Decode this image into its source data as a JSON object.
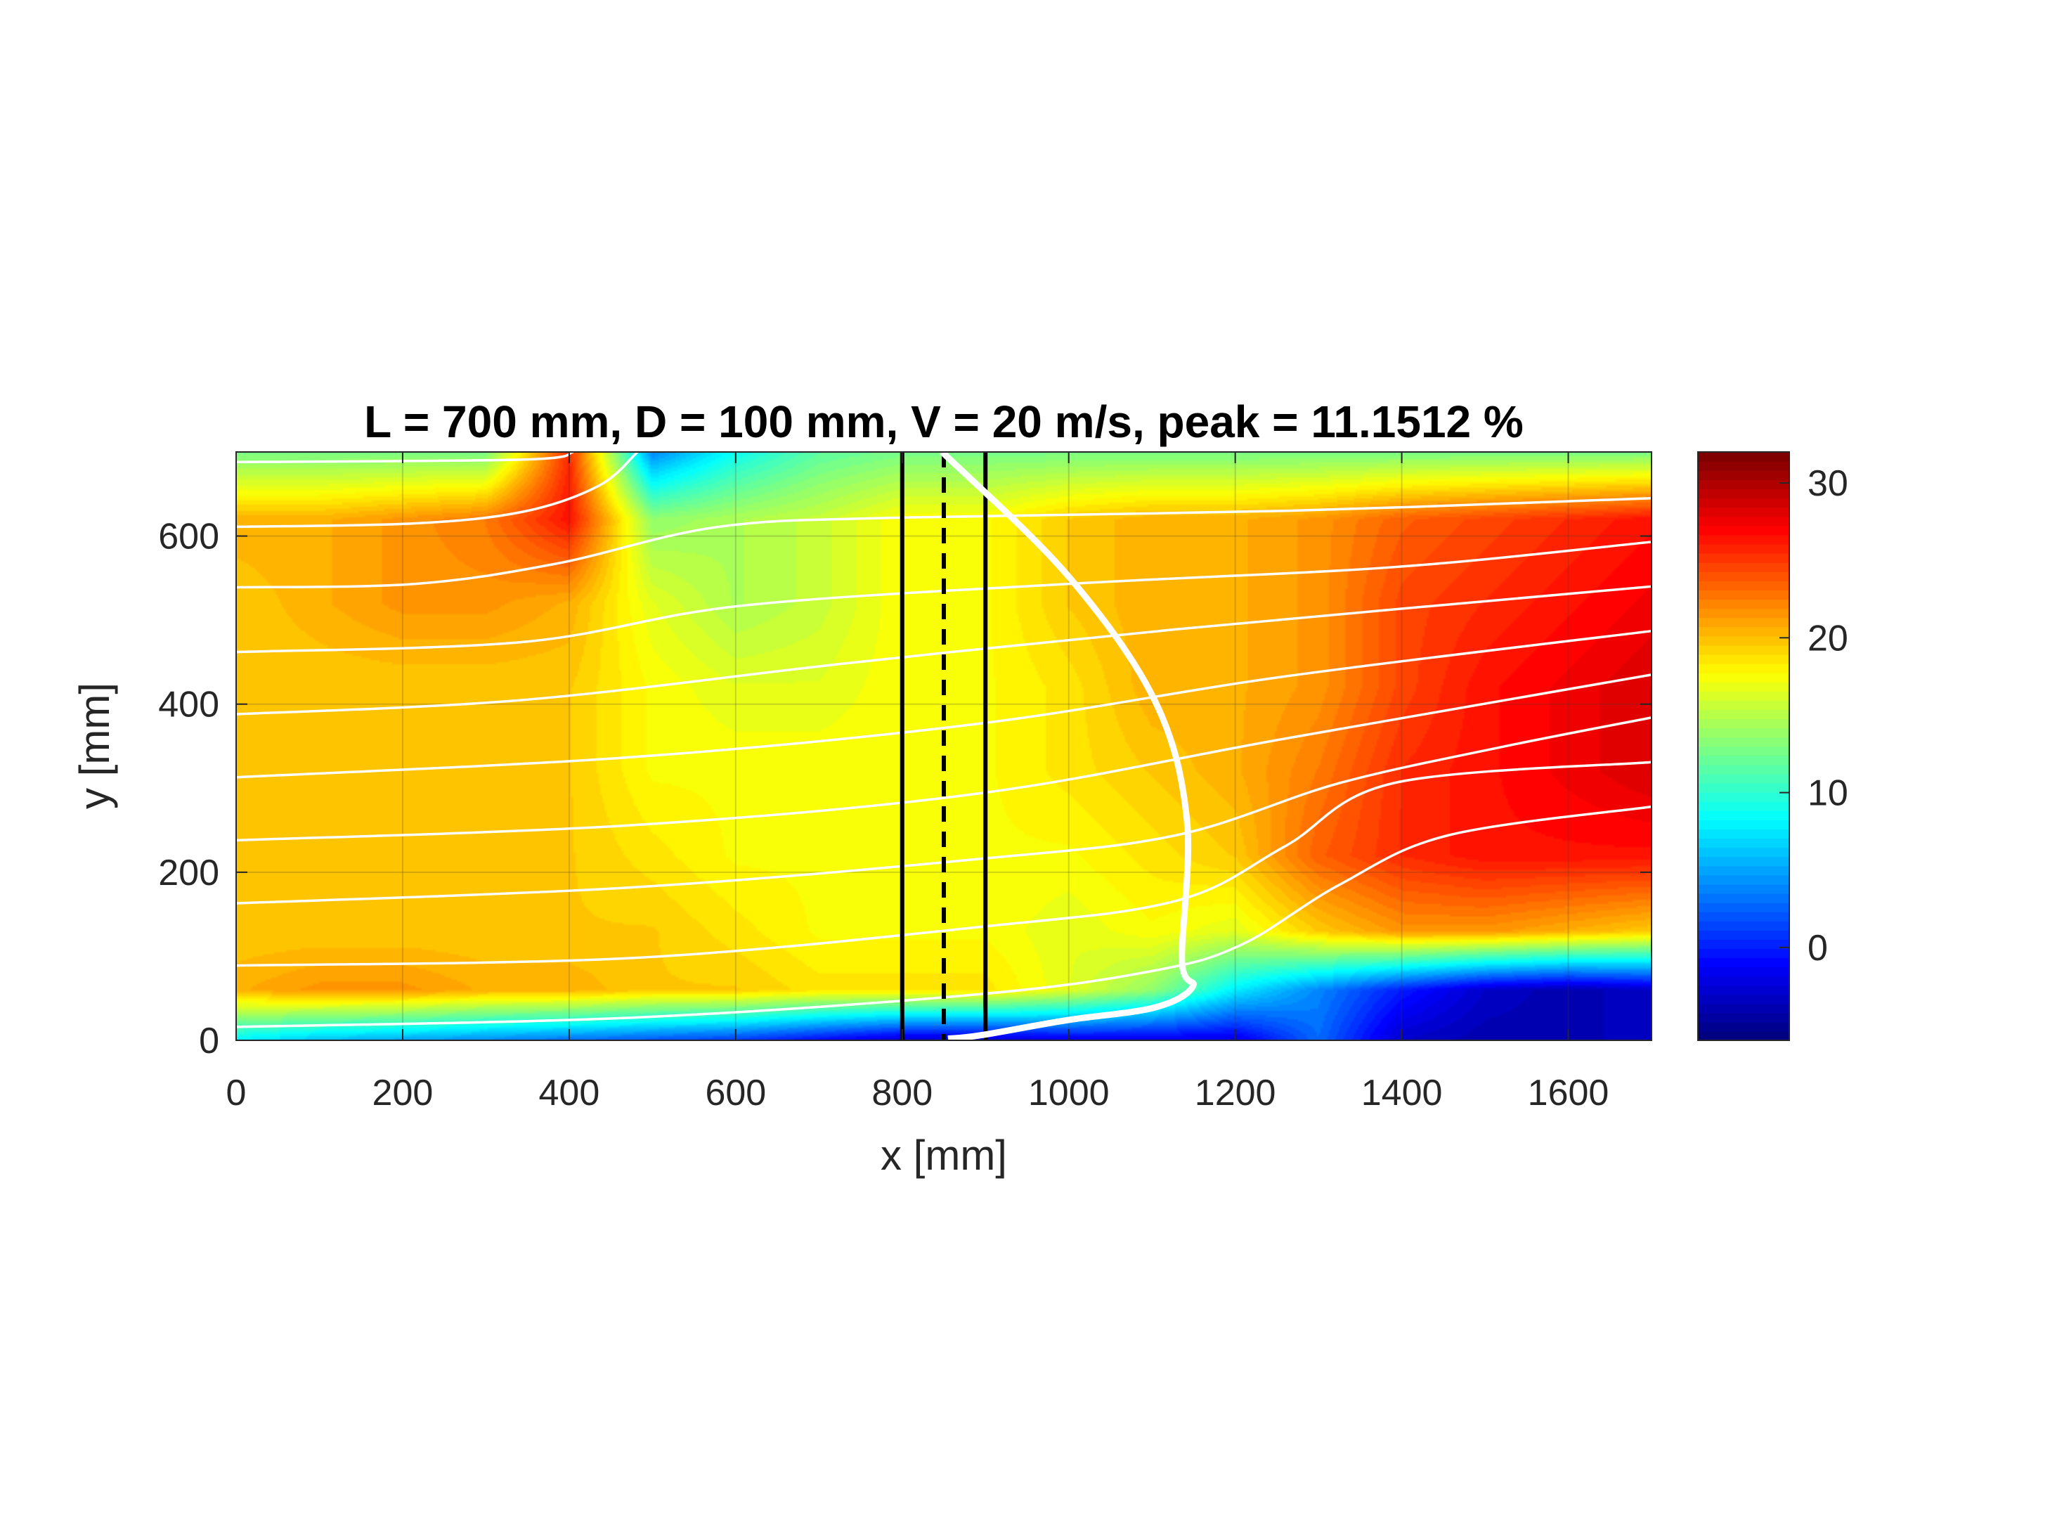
{
  "chart_data": {
    "type": "heatmap",
    "title": "L = 700 mm, D = 100 mm, V = 20 m/s, peak = 11.1512 %",
    "xlabel": "x [mm]",
    "ylabel": "y [mm]",
    "xlim": [
      0,
      1700
    ],
    "ylim": [
      0,
      700
    ],
    "xticks": [
      0,
      200,
      400,
      600,
      800,
      1000,
      1200,
      1400,
      1600
    ],
    "yticks": [
      0,
      200,
      400,
      600
    ],
    "grid": true,
    "colormap": "jet",
    "clim": [
      -6,
      32
    ],
    "colorbar_ticks": [
      0,
      10,
      20,
      30
    ],
    "grid_x": [
      0,
      100,
      200,
      300,
      400,
      500,
      600,
      700,
      800,
      900,
      1000,
      1100,
      1200,
      1300,
      1400,
      1500,
      1600,
      1700
    ],
    "grid_y": [
      700,
      620,
      520,
      420,
      320,
      220,
      130,
      60,
      0
    ],
    "values": [
      [
        13,
        13,
        13,
        13,
        26,
        4,
        9,
        12,
        13,
        13,
        13,
        13,
        13,
        13,
        13,
        13,
        13,
        13
      ],
      [
        21,
        21,
        22,
        23,
        27,
        14,
        15,
        16,
        18,
        18,
        20,
        21,
        21,
        22,
        24,
        25,
        26,
        27
      ],
      [
        20,
        21,
        22,
        22,
        21,
        17,
        15,
        16,
        18,
        18,
        20,
        21,
        21,
        22,
        25,
        26,
        27,
        28
      ],
      [
        20,
        20,
        20,
        20,
        20,
        18,
        17,
        17,
        18,
        18,
        19,
        21,
        21,
        22,
        25,
        27,
        28,
        29
      ],
      [
        20,
        20,
        20,
        20,
        20,
        18,
        18,
        18,
        18,
        18,
        19,
        20,
        21,
        23,
        26,
        27,
        28,
        29
      ],
      [
        20,
        20,
        20,
        20,
        20,
        19,
        18,
        18,
        18,
        18,
        18,
        19,
        20,
        24,
        26,
        27,
        27,
        27
      ],
      [
        20,
        20,
        20,
        20,
        20,
        20,
        19,
        18,
        18,
        18,
        17,
        18,
        17,
        20,
        22,
        22,
        21,
        20
      ],
      [
        21,
        22,
        22,
        21,
        21,
        20,
        20,
        19,
        19,
        19,
        17,
        14,
        8,
        4,
        0,
        -3,
        -4,
        -3
      ],
      [
        8,
        6,
        5,
        4,
        3,
        2,
        1,
        -1,
        -3,
        -3,
        -2,
        -2,
        -2,
        3,
        -3,
        -4,
        -4,
        -3
      ]
    ],
    "streamlines": [
      [
        [
          0,
          688
        ],
        [
          345,
          691
        ],
        [
          405,
          700
        ]
      ],
      [
        [
          0,
          611
        ],
        [
          214,
          615
        ],
        [
          345,
          629
        ],
        [
          436,
          660
        ],
        [
          482,
          700
        ]
      ],
      [
        [
          0,
          539
        ],
        [
          214,
          543
        ],
        [
          384,
          567
        ],
        [
          580,
          611
        ],
        [
          802,
          622
        ],
        [
          1260,
          630
        ],
        [
          1700,
          645
        ]
      ],
      [
        [
          0,
          462
        ],
        [
          345,
          474
        ],
        [
          606,
          517
        ],
        [
          998,
          543
        ],
        [
          1390,
          563
        ],
        [
          1700,
          593
        ]
      ],
      [
        [
          0,
          388
        ],
        [
          345,
          405
        ],
        [
          737,
          449
        ],
        [
          1129,
          489
        ],
        [
          1700,
          540
        ]
      ],
      [
        [
          0,
          313
        ],
        [
          476,
          337
        ],
        [
          894,
          377
        ],
        [
          1260,
          433
        ],
        [
          1700,
          487
        ]
      ],
      [
        [
          0,
          238
        ],
        [
          476,
          256
        ],
        [
          894,
          294
        ],
        [
          1260,
          359
        ],
        [
          1700,
          435
        ]
      ],
      [
        [
          0,
          163
        ],
        [
          476,
          182
        ],
        [
          894,
          216
        ],
        [
          1129,
          244
        ],
        [
          1325,
          306
        ],
        [
          1520,
          349
        ],
        [
          1700,
          384
        ]
      ],
      [
        [
          0,
          89
        ],
        [
          476,
          98
        ],
        [
          894,
          135
        ],
        [
          1129,
          166
        ],
        [
          1260,
          231
        ],
        [
          1390,
          306
        ],
        [
          1700,
          331
        ]
      ],
      [
        [
          0,
          16
        ],
        [
          476,
          27
        ],
        [
          894,
          55
        ],
        [
          1103,
          83
        ],
        [
          1208,
          114
        ],
        [
          1325,
          185
        ],
        [
          1456,
          244
        ],
        [
          1700,
          278
        ]
      ]
    ],
    "profile_curve": [
      [
        848,
        700
      ],
      [
        998,
        554
      ],
      [
        1103,
        405
      ],
      [
        1142,
        262
      ],
      [
        1136,
        95
      ],
      [
        1149,
        64
      ],
      [
        1103,
        39
      ],
      [
        998,
        24
      ],
      [
        894,
        6
      ],
      [
        855,
        2
      ]
    ],
    "vertical_lines": [
      {
        "x": 800,
        "style": "solid"
      },
      {
        "x": 850,
        "style": "dashed"
      },
      {
        "x": 900,
        "style": "solid"
      }
    ]
  }
}
